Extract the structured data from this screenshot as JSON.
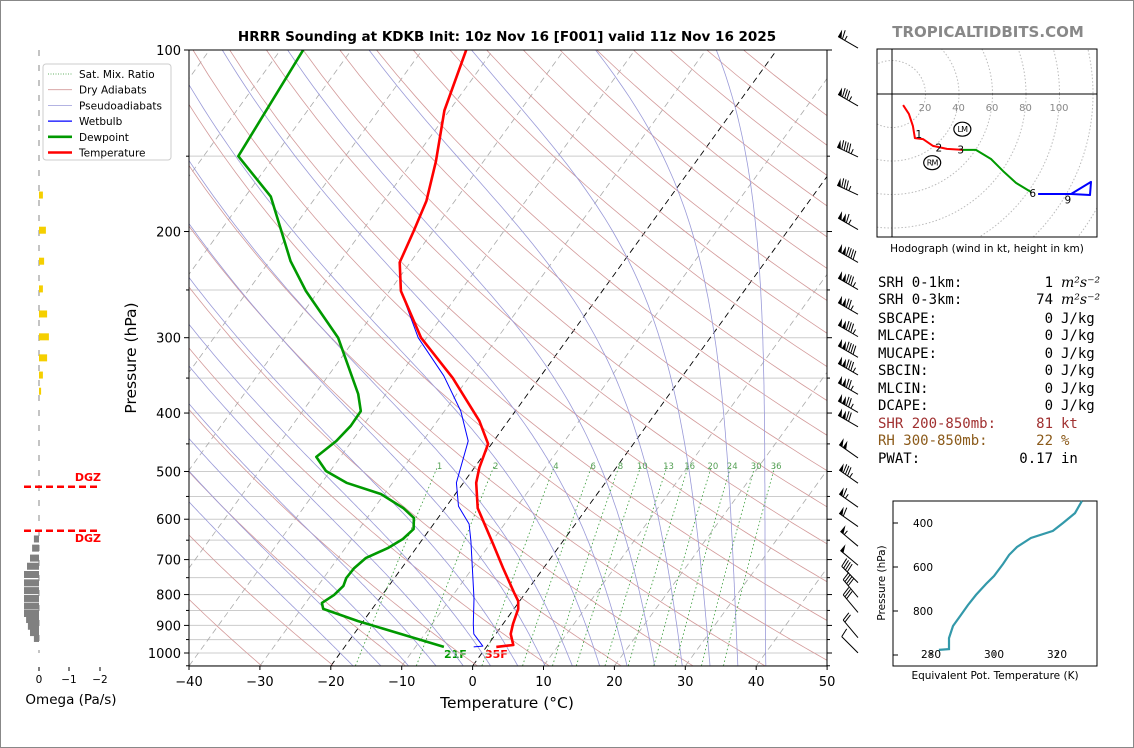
{
  "title": "HRRR Sounding at KDKB Init: 10z Nov 16 [F001] valid 11z Nov 16 2025",
  "brand": "TROPICALTIDBITS.COM",
  "colors": {
    "temperature": "#ff0000",
    "dewpoint": "#009900",
    "wetbulb": "#0000ff",
    "dry_adiabat": "#d39a9a",
    "pseudoadiabat": "#9a9ad8",
    "mixing_ratio": "#339933",
    "isotherm": "#999999",
    "theta_e": "#3399aa",
    "omega_down": "#808080",
    "omega_up": "#f5cf00",
    "dgz": "#ff0000",
    "shr": "#a03030",
    "rh": "#8b5a1a"
  },
  "legend": [
    "Sat. Mix. Ratio",
    "Dry Adiabats",
    "Pseudoadiabats",
    "Wetbulb",
    "Dewpoint",
    "Temperature"
  ],
  "surface_labels": {
    "dewpoint": "21F",
    "temperature": "35F"
  },
  "omega_panel": {
    "xlabel": "Omega (Pa/s)",
    "ticks": [
      "0",
      "−1",
      "−2"
    ],
    "dgz_label": "DGZ"
  },
  "chart_data": [
    {
      "type": "line",
      "name": "skew-t",
      "xlabel": "Temperature (°C)",
      "ylabel": "Pressure (hPa)",
      "xlim": [
        -40,
        50
      ],
      "ylim": [
        1050,
        100
      ],
      "y_scale": "log",
      "x_ticks": [
        "−40",
        "−30",
        "−20",
        "−10",
        "0",
        "10",
        "20",
        "30",
        "40",
        "50"
      ],
      "y_ticks": [
        "100",
        "200",
        "300",
        "400",
        "500",
        "600",
        "700",
        "800",
        "900",
        "1000"
      ],
      "grid": true,
      "legend_position": "top-left",
      "mixing_ratio_labels": [
        "1",
        "2",
        "4",
        "6",
        "8",
        "10",
        "13",
        "16",
        "20",
        "24",
        "30",
        "36"
      ],
      "series": [
        {
          "name": "Temperature",
          "p": [
            977,
            970,
            930,
            895,
            845,
            820,
            795,
            723,
            659,
            575,
            522,
            493,
            450,
            412,
            350,
            300,
            251,
            225,
            200,
            178,
            153,
            126,
            100
          ],
          "t": [
            1.4,
            3.6,
            2.1,
            1.4,
            0.6,
            -0.2,
            -1.6,
            -5.7,
            -9.6,
            -15.4,
            -18.2,
            -19.3,
            -20.5,
            -24.1,
            -32.2,
            -40.8,
            -48.4,
            -51.5,
            -52.7,
            -54.0,
            -56.7,
            -60.7,
            -63.8
          ]
        },
        {
          "name": "Dewpoint",
          "p": [
            977,
            885,
            845,
            826,
            801,
            774,
            751,
            723,
            696,
            670,
            647,
            623,
            597,
            575,
            545,
            522,
            499,
            473,
            445,
            420,
            397,
            372,
            300,
            251,
            224,
            175,
            150,
            100
          ],
          "t": [
            -6.0,
            -20.8,
            -26.9,
            -27.7,
            -26.8,
            -26.4,
            -26.8,
            -26.7,
            -26.1,
            -24.0,
            -22.8,
            -22.3,
            -23.4,
            -25.9,
            -30.5,
            -36.5,
            -40.6,
            -43.4,
            -42.2,
            -41.7,
            -41.8,
            -43.9,
            -52.5,
            -61.8,
            -67.0,
            -76.4,
            -85.1,
            -86.8
          ]
        },
        {
          "name": "Wetbulb",
          "p": [
            977,
            974,
            930,
            895,
            812,
            652,
            611,
            571,
            522,
            445,
            397,
            347,
            300,
            251,
            225,
            200,
            178,
            153,
            126,
            100
          ],
          "t": [
            -1.8,
            -0.6,
            -3.1,
            -4.2,
            -6.7,
            -13.0,
            -15.0,
            -18.3,
            -21.0,
            -23.6,
            -27.7,
            -33.7,
            -41.2,
            -48.4,
            -51.5,
            -52.7,
            -54.0,
            -56.7,
            -60.7,
            -63.8
          ]
        }
      ],
      "wind_barbs": {
        "p": [
          97,
          121,
          147,
          170,
          194,
          220,
          244,
          268,
          292,
          316,
          338,
          364,
          390,
          412,
          464,
          511,
          560,
          603,
          650,
          699,
          747,
          790,
          837,
          922,
          977
        ],
        "speed_kt": [
          65,
          85,
          95,
          85,
          115,
          140,
          135,
          125,
          135,
          140,
          135,
          125,
          125,
          120,
          100,
          85,
          65,
          60,
          55,
          50,
          40,
          40,
          30,
          20,
          10
        ],
        "dir_deg": [
          300,
          300,
          295,
          295,
          300,
          300,
          300,
          300,
          300,
          300,
          300,
          300,
          300,
          300,
          305,
          305,
          305,
          305,
          310,
          310,
          315,
          320,
          320,
          320,
          315
        ]
      }
    },
    {
      "type": "bar",
      "name": "omega",
      "xlabel": "Omega (Pa/s)",
      "xlim": [
        0.5,
        -2
      ],
      "p": [
        174,
        199,
        224,
        249,
        274,
        299,
        324,
        346,
        368,
        647,
        670,
        696,
        718,
        741,
        765,
        788,
        812,
        836,
        860,
        880,
        903,
        925,
        946
      ],
      "omega": [
        -0.13,
        -0.23,
        -0.17,
        -0.13,
        -0.27,
        -0.33,
        -0.27,
        -0.13,
        -0.07,
        0.17,
        0.23,
        0.3,
        0.4,
        0.5,
        0.5,
        0.5,
        0.5,
        0.5,
        0.5,
        0.43,
        0.37,
        0.3,
        0.17
      ],
      "dgz_hpa": [
        530,
        627
      ]
    },
    {
      "type": "line",
      "name": "hodograph",
      "caption": "Hodograph (wind in kt, height in km)",
      "ring_labels": [
        "20",
        "40",
        "60",
        "80",
        "100"
      ],
      "segments": [
        {
          "layer": "0-3 km",
          "color": "#ff0000",
          "u": [
            6.6,
            10.1,
            12.5,
            13.7,
            18.5,
            24.5,
            32.8,
            42.4
          ],
          "v": [
            -6.6,
            -11.9,
            -19.1,
            -26.3,
            -26.9,
            -31.0,
            -32.8,
            -33.4
          ]
        },
        {
          "layer": "3-6 km",
          "color": "#009900",
          "u": [
            42.4,
            50.1,
            59.1,
            66.3,
            74.0,
            83.0
          ],
          "v": [
            -33.4,
            -33.4,
            -38.8,
            -46.0,
            -53.1,
            -58.5
          ]
        },
        {
          "layer": "6-9+ km",
          "color": "#0000ff",
          "u": [
            87.2,
            103.9,
            106.9,
            118.8,
            118.2,
            106.9
          ],
          "v": [
            -59.7,
            -59.7,
            -59.7,
            -52.5,
            -60.3,
            -59.7
          ]
        }
      ],
      "height_labels": [
        {
          "text": "1",
          "u": 16,
          "v": -24
        },
        {
          "text": "2",
          "u": 28,
          "v": -32
        },
        {
          "text": "3",
          "u": 41,
          "v": -33
        },
        {
          "text": "6",
          "u": 84,
          "v": -59
        },
        {
          "text": "9",
          "u": 105,
          "v": -63
        }
      ],
      "storm_motion": [
        {
          "text": "LM",
          "u": 42,
          "v": -21
        },
        {
          "text": "RM",
          "u": 24,
          "v": -41
        }
      ]
    },
    {
      "type": "line",
      "name": "theta-e",
      "xlabel": "Equivalent Pot. Temperature (K)",
      "ylabel": "Pressure (hPa)",
      "x_ticks": [
        "280",
        "300",
        "320"
      ],
      "y_ticks": [
        "400",
        "600",
        "800"
      ],
      "xlim": [
        268,
        333
      ],
      "ylim": [
        1050,
        309
      ],
      "p": [
        977,
        973,
        923,
        868,
        818,
        773,
        727,
        677,
        641,
        586,
        545,
        509,
        468,
        436,
        400,
        355,
        300
      ],
      "theta_e": [
        282.5,
        285.7,
        285.7,
        287.0,
        289.5,
        291.7,
        294.3,
        297.5,
        300.0,
        302.9,
        304.8,
        307.3,
        311.7,
        318.7,
        321.9,
        325.7,
        327.9
      ]
    }
  ],
  "stats": [
    {
      "label": "SRH 0-1km:",
      "value": "1",
      "unit": "m²s⁻²",
      "style": "normal"
    },
    {
      "label": "SRH 0-3km:",
      "value": "74",
      "unit": "m²s⁻²",
      "style": "normal"
    },
    {
      "label": "SBCAPE:",
      "value": "0",
      "unit": "J/kg",
      "style": "normal"
    },
    {
      "label": "MLCAPE:",
      "value": "0",
      "unit": "J/kg",
      "style": "normal"
    },
    {
      "label": "MUCAPE:",
      "value": "0",
      "unit": "J/kg",
      "style": "normal"
    },
    {
      "label": "SBCIN:",
      "value": "0",
      "unit": "J/kg",
      "style": "normal"
    },
    {
      "label": "MLCIN:",
      "value": "0",
      "unit": "J/kg",
      "style": "normal"
    },
    {
      "label": "DCAPE:",
      "value": "0",
      "unit": "J/kg",
      "style": "normal"
    },
    {
      "label": "SHR 200-850mb:",
      "value": "81",
      "unit": "kt",
      "style": "shr"
    },
    {
      "label": "RH 300-850mb:",
      "value": "22",
      "unit": "%",
      "style": "rh"
    },
    {
      "label": "PWAT:",
      "value": "0.17",
      "unit": "in",
      "style": "normal"
    }
  ]
}
